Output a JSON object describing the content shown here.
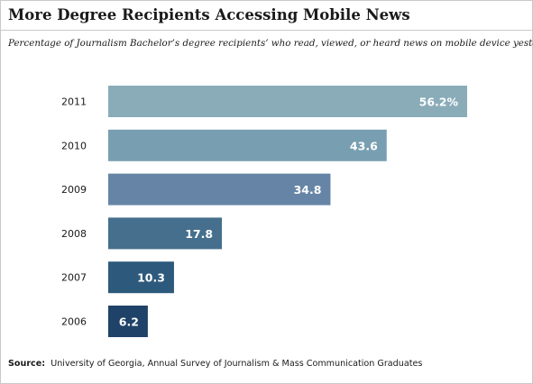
{
  "title": "More Degree Recipients Accessing Mobile News",
  "subtitle": "Percentage of Journalism Bachelor’s degree recipients’ who read, viewed, or heard news on mobile device yesterday",
  "source": {
    "label": "Source:",
    "text": "University of Georgia, Annual Survey of Journalism & Mass Communication Graduates"
  },
  "chart_data": {
    "type": "bar",
    "orientation": "horizontal",
    "categories": [
      "2011",
      "2010",
      "2009",
      "2008",
      "2007",
      "2006"
    ],
    "values": [
      56.2,
      43.6,
      34.8,
      17.8,
      10.3,
      6.2
    ],
    "labels": [
      "56.2%",
      "43.6",
      "34.8",
      "17.8",
      "10.3",
      "6.2"
    ],
    "colors": [
      "#8aacb9",
      "#789fb1",
      "#6685a6",
      "#456f8d",
      "#2d5a7c",
      "#1f4268"
    ],
    "xlim": [
      0,
      56.2
    ],
    "grid": false,
    "legend": "none"
  }
}
